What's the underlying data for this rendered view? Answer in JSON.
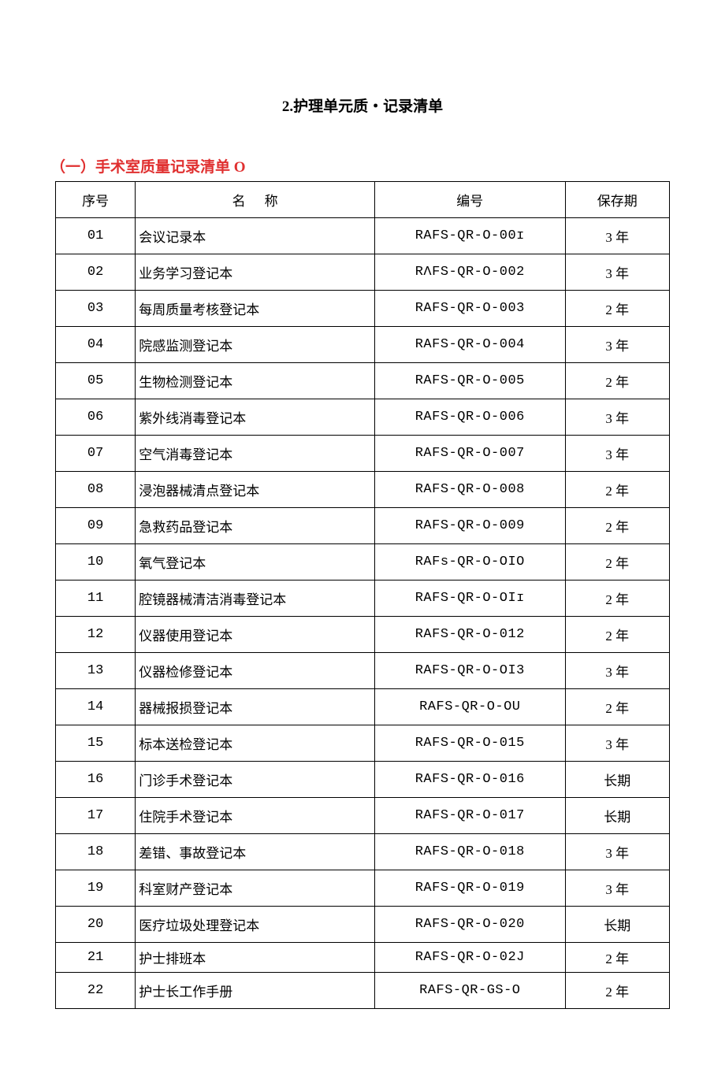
{
  "title": "2.护理单元质・记录清单",
  "subtitle": "（一）手术室质量记录清单 O",
  "table": {
    "columns": [
      "序号",
      "名称",
      "编号",
      "保存期"
    ],
    "col_widths_pct": [
      13,
      39,
      31,
      17
    ],
    "col_align": [
      "center",
      "left",
      "center",
      "center"
    ],
    "header_bg": "#ffffff",
    "border_color": "#000000",
    "title_color": "#000000",
    "subtitle_color": "#e03030",
    "font_size_pt": 12,
    "rows": [
      [
        "01",
        "会议记录本",
        "RAFS-QR-O-00ɪ",
        "3 年"
      ],
      [
        "02",
        "业务学习登记本",
        "RΛFS-QR-O-002",
        "3 年"
      ],
      [
        "03",
        "每周质量考核登记本",
        "RAFS-QR-O-003",
        "2 年"
      ],
      [
        "04",
        "院感监测登记本",
        "RAFS-QR-O-004",
        "3 年"
      ],
      [
        "05",
        "生物检测登记本",
        "RAFS-QR-O-005",
        "2 年"
      ],
      [
        "06",
        "紫外线消毒登记本",
        "RAFS-QR-O-006",
        "3 年"
      ],
      [
        "07",
        "空气消毒登记本",
        "RAFS-QR-O-007",
        "3 年"
      ],
      [
        "08",
        "浸泡器械清点登记本",
        "RAFS-QR-O-008",
        "2 年"
      ],
      [
        "09",
        "急救药品登记本",
        "RAFS-QR-O-009",
        "2 年"
      ],
      [
        "10",
        "氧气登记本",
        "RAFs-QR-O-OIO",
        "2 年"
      ],
      [
        "11",
        "腔镜器械清洁消毒登记本",
        "RAFS-QR-O-OIɪ",
        "2 年"
      ],
      [
        "12",
        "仪器使用登记本",
        "RAFS-QR-O-012",
        "2 年"
      ],
      [
        "13",
        "仪器检修登记本",
        "RAFS-QR-O-OI3",
        "3 年"
      ],
      [
        "14",
        "器械报损登记本",
        "RAFS-QR-O-OU",
        "2 年"
      ],
      [
        "15",
        "标本送检登记本",
        "RAFS-QR-O-015",
        "3 年"
      ],
      [
        "16",
        "门诊手术登记本",
        "RAFS-QR-O-016",
        "长期"
      ],
      [
        "17",
        "住院手术登记本",
        "RAFS-QR-O-017",
        "长期"
      ],
      [
        "18",
        "差错、事故登记本",
        "RAFS-QR-O-018",
        "3 年"
      ],
      [
        "19",
        "科室财产登记本",
        "RAFS-QR-O-019",
        "3 年"
      ],
      [
        "20",
        "医疗垃圾处理登记本",
        "RAFS-QR-O-020",
        "长期"
      ],
      [
        "21",
        "护士排班本",
        "RAFS-QR-O-02J",
        "2 年"
      ],
      [
        "22",
        "护士长工作手册",
        "RAFS-QR-GS-O",
        "2 年"
      ]
    ],
    "compact_rows": [
      20
    ]
  }
}
